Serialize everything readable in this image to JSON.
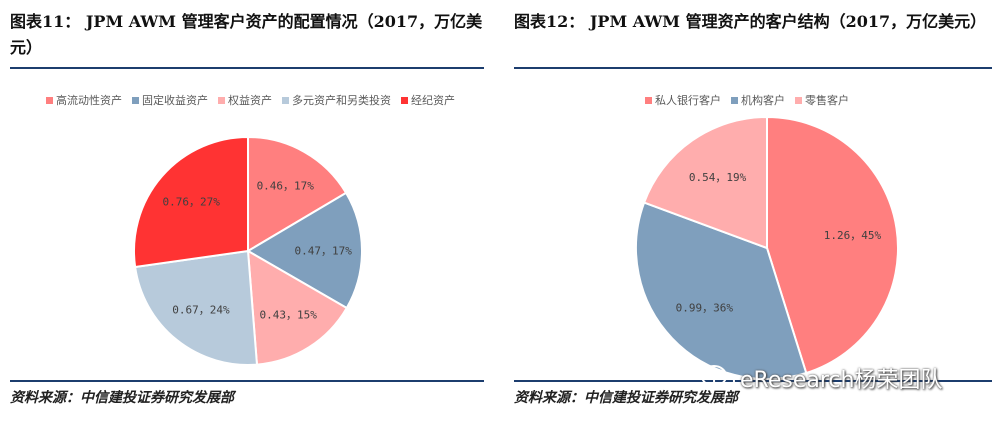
{
  "left": {
    "title": "图表11：  JPM AWM 管理客户资产的配置情况（2017，万亿美元）",
    "source": "资料来源：中信建投证券研究发展部",
    "chart_data": {
      "type": "pie",
      "title": "",
      "legend_position": "top",
      "slices": [
        {
          "name": "高流动性资产",
          "value": 0.46,
          "percent": 17,
          "label": "0.46，17%",
          "color": "#ff7f7f"
        },
        {
          "name": "固定收益资产",
          "value": 0.47,
          "percent": 17,
          "label": "0.47，17%",
          "color": "#7f9fbd"
        },
        {
          "name": "权益资产",
          "value": 0.43,
          "percent": 15,
          "label": "0.43，15%",
          "color": "#ffadad"
        },
        {
          "name": "多元资产和另类投资",
          "value": 0.67,
          "percent": 24,
          "label": "0.67，24%",
          "color": "#b7cadb"
        },
        {
          "name": "经纪资产",
          "value": 0.76,
          "percent": 27,
          "label": "0.76，27%",
          "color": "#ff3333"
        }
      ]
    }
  },
  "right": {
    "title": "图表12：  JPM AWM 管理资产的客户结构（2017，万亿美元）",
    "source": "资料来源：中信建投证券研究发展部",
    "chart_data": {
      "type": "pie",
      "title": "",
      "legend_position": "top",
      "slices": [
        {
          "name": "私人银行客户",
          "value": 1.26,
          "percent": 45,
          "label": "1.26，45%",
          "color": "#ff7f7f"
        },
        {
          "name": "机构客户",
          "value": 0.99,
          "percent": 36,
          "label": "0.99，36%",
          "color": "#7f9fbd"
        },
        {
          "name": "零售客户",
          "value": 0.54,
          "percent": 19,
          "label": "0.54，19%",
          "color": "#ffadad"
        }
      ]
    }
  },
  "watermark": {
    "text": "eResearch杨荣团队",
    "icon": "wechat-icon"
  }
}
